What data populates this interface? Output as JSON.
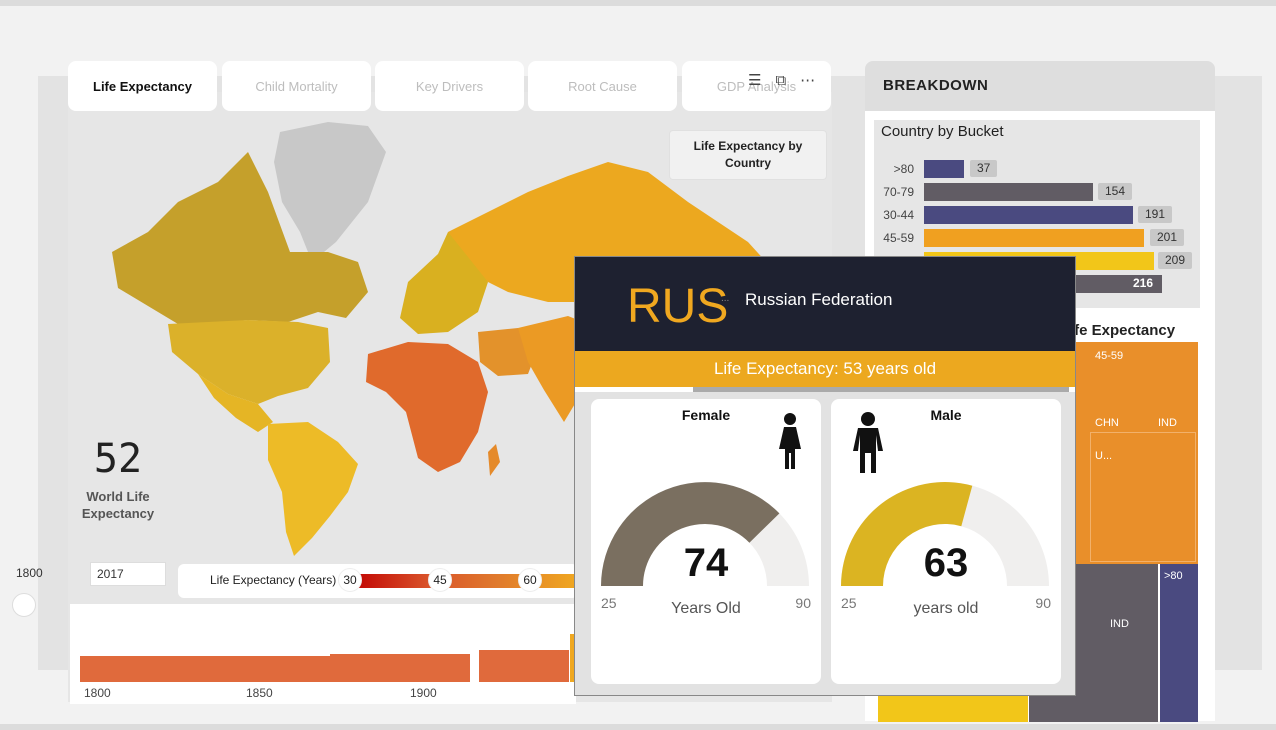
{
  "tabs": [
    {
      "label": "Life Expectancy",
      "active": true
    },
    {
      "label": "Child Mortality",
      "active": false
    },
    {
      "label": "Key Drivers",
      "active": false
    },
    {
      "label": "Root Cause",
      "active": false
    },
    {
      "label": "GDP Analysis",
      "active": false
    }
  ],
  "map": {
    "title": "Life Expectancy by Country",
    "world_value": "52",
    "world_label": "World Life Expectancy",
    "icons": [
      "filter-icon",
      "expand-icon",
      "more-options-icon"
    ]
  },
  "timeline": {
    "start_year": "1800",
    "current_year": "2017",
    "axis": [
      "1800",
      "1850",
      "1900"
    ]
  },
  "legend": {
    "title": "Life Expectancy (Years)",
    "ticks": [
      "30",
      "45",
      "60"
    ]
  },
  "breakdown": {
    "header": "BREAKDOWN",
    "bucket_chart": {
      "title": "Country by Bucket",
      "rows": [
        {
          "label": ">80",
          "value": "37",
          "color": "#4a4a80"
        },
        {
          "label": "70-79",
          "value": "154",
          "color": "#615c64"
        },
        {
          "label": "30-44",
          "value": "191",
          "color": "#4a4a80"
        },
        {
          "label": "45-59",
          "value": "201",
          "color": "#f0a020"
        },
        {
          "label": "",
          "value": "209",
          "color": "#f2c619"
        },
        {
          "label": "",
          "value": "216",
          "color": "#615c64"
        }
      ]
    },
    "treemap": {
      "title": "ife Expectancy",
      "labels": [
        "45-59",
        "CHN",
        "IND",
        "U...",
        ">80",
        "IND"
      ]
    }
  },
  "tooltip": {
    "code": "RUS",
    "dots": "...",
    "name": "Russian Federation",
    "banner": "Life Expectancy: 53 years old",
    "female": {
      "title": "Female",
      "value": "74",
      "unit": "Years Old",
      "min": "25",
      "max": "90",
      "color": "#7a6f60"
    },
    "male": {
      "title": "Male",
      "value": "63",
      "unit": "years old",
      "min": "25",
      "max": "90",
      "color": "#dbb422"
    }
  }
}
